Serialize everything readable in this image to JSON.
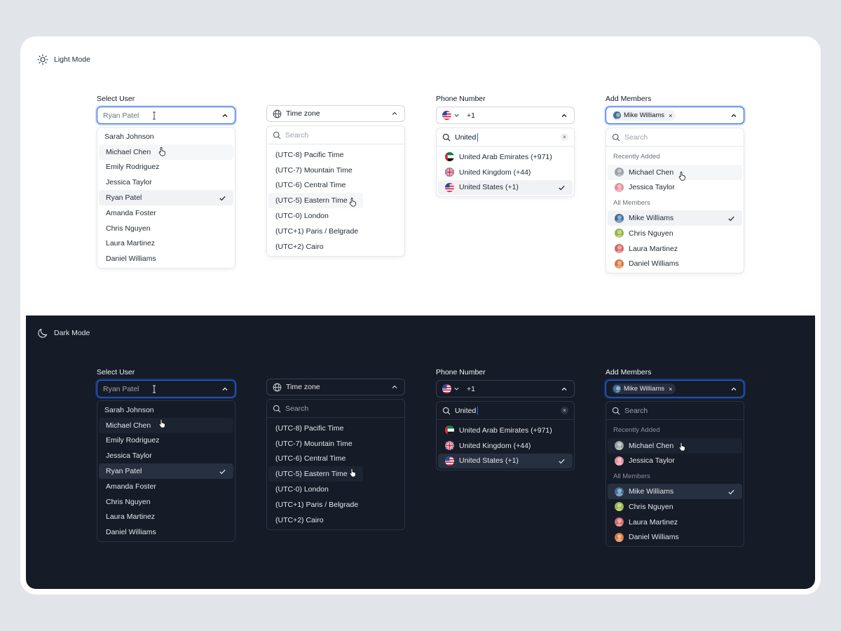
{
  "modes": {
    "light": {
      "label": "Light Mode"
    },
    "dark": {
      "label": "Dark Mode"
    }
  },
  "select_user": {
    "label": "Select User",
    "value": "Ryan Patel",
    "options": [
      "Sarah Johnson",
      "Michael Chen",
      "Emily Rodriguez",
      "Jessica Taylor",
      "Ryan Patel",
      "Amanda Foster",
      "Chris Nguyen",
      "Laura Martinez",
      "Daniel Williams"
    ],
    "selected_index": 4,
    "hover_index": 1
  },
  "time_zone": {
    "placeholder": "Time zone",
    "search_placeholder": "Search",
    "options": [
      "(UTC-8) Pacific Time",
      "(UTC-7) Mountain Time",
      "(UTC-6) Central Time",
      "(UTC-5) Eastern Time",
      "(UTC-0) London",
      "(UTC+1) Paris / Belgrade",
      "(UTC+2) Cairo"
    ],
    "hover_index": 3
  },
  "phone_number": {
    "label": "Phone Number",
    "country_code": "+1",
    "search_value": "United",
    "options": [
      {
        "label": "United Arab Emirates (+971)",
        "flag": "uae-flag"
      },
      {
        "label": "United Kingdom (+44)",
        "flag": "uk-flag"
      },
      {
        "label": "United States (+1)",
        "flag": "us-flag"
      }
    ],
    "selected_index": 2
  },
  "add_members": {
    "label": "Add Members",
    "chip": "Mike Williams",
    "search_placeholder": "Search",
    "recently_added_label": "Recently Added",
    "recently_added": [
      {
        "name": "Michael Chen",
        "color": "#9aa0a8"
      },
      {
        "name": "Jessica Taylor",
        "color": "#e58f9c"
      }
    ],
    "all_members_label": "All Members",
    "all_members": [
      {
        "name": "Mike Williams",
        "color": "#3f6f9b"
      },
      {
        "name": "Chris Nguyen",
        "color": "#9bb54a"
      },
      {
        "name": "Laura Martinez",
        "color": "#d46a6a"
      },
      {
        "name": "Daniel Williams",
        "color": "#d9773f"
      }
    ],
    "selected_member": "Mike Williams",
    "hover_member": "Michael Chen"
  },
  "colors": {
    "accent": "#2563eb",
    "dark_background": "#151b27",
    "page_background": "#e1e4e9"
  }
}
